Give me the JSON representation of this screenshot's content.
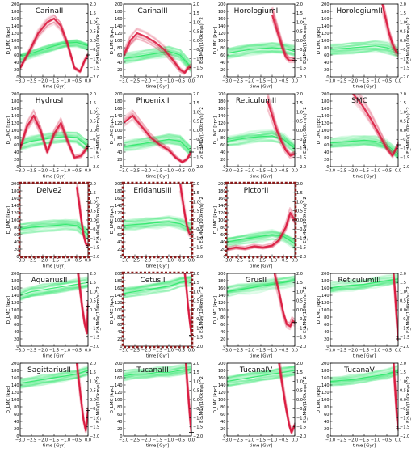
{
  "chart_data": {
    "type": "line",
    "layout": "5x4 grid of small multiples",
    "x_axis": {
      "label": "time [Gyr]",
      "lim": [
        -3.0,
        0.0
      ],
      "ticks": [
        "−3.0",
        "−2.5",
        "−2.0",
        "−1.5",
        "−1.0",
        "−0.5",
        "0.0"
      ]
    },
    "y_axis_left": {
      "label": "D_LMC [kpc]",
      "lim": [
        0,
        200
      ],
      "ticks": [
        "0",
        "20",
        "40",
        "60",
        "80",
        "100",
        "120",
        "140",
        "160",
        "180",
        "200"
      ]
    },
    "y_axis_right": {
      "label": "E_LMC /(100km/s)^2",
      "lim": [
        -2.0,
        2.0
      ],
      "ticks": [
        "−2.0",
        "−1.5",
        "−1.0",
        "−0.5",
        "0.0",
        "0.5",
        "1.0",
        "1.5",
        "2.0"
      ]
    },
    "series_colors": {
      "distance": "#d9143a",
      "energy": "#2ee86a",
      "highlight_border": "#8b1a1a"
    },
    "panels": [
      {
        "name": "CarinaII",
        "row": 0,
        "col": 0,
        "highlight": false,
        "green": [
          -0.9,
          -0.7,
          -0.5,
          -0.3,
          -0.15,
          -0.1,
          -0.3
        ],
        "red": [
          [
            -3.0,
            25
          ],
          [
            -2.6,
            70
          ],
          [
            -2.2,
            120
          ],
          [
            -1.8,
            150
          ],
          [
            -1.5,
            160
          ],
          [
            -1.2,
            140
          ],
          [
            -0.9,
            90
          ],
          [
            -0.6,
            25
          ],
          [
            -0.35,
            15
          ],
          [
            -0.15,
            45
          ],
          [
            0.0,
            60
          ]
        ]
      },
      {
        "name": "CarinaIII",
        "row": 0,
        "col": 1,
        "highlight": false,
        "green": [
          -1.0,
          -0.9,
          -0.8,
          -0.7,
          -0.6,
          -0.8,
          -1.5
        ],
        "red": [
          [
            -3.0,
            60
          ],
          [
            -2.7,
            100
          ],
          [
            -2.4,
            120
          ],
          [
            -2.0,
            110
          ],
          [
            -1.6,
            95
          ],
          [
            -1.2,
            75
          ],
          [
            -0.8,
            45
          ],
          [
            -0.5,
            20
          ],
          [
            -0.3,
            12
          ],
          [
            -0.15,
            25
          ],
          [
            0.0,
            30
          ]
        ]
      },
      {
        "name": "HorologiumI",
        "row": 0,
        "col": 2,
        "highlight": false,
        "green": [
          -0.7,
          -0.6,
          -0.5,
          -0.45,
          -0.4,
          -0.45,
          -0.6
        ],
        "red": [
          [
            -1.0,
            170
          ],
          [
            -0.85,
            140
          ],
          [
            -0.7,
            110
          ],
          [
            -0.55,
            80
          ],
          [
            -0.4,
            55
          ],
          [
            -0.25,
            45
          ],
          [
            0.0,
            45
          ]
        ]
      },
      {
        "name": "HorologiumII",
        "row": 0,
        "col": 3,
        "highlight": false,
        "green": [
          -0.5,
          -0.45,
          -0.4,
          -0.35,
          -0.3,
          -0.4,
          -0.6
        ],
        "red": [
          [
            -0.7,
            200
          ],
          [
            -0.55,
            160
          ],
          [
            -0.4,
            120
          ],
          [
            -0.25,
            90
          ],
          [
            -0.1,
            70
          ],
          [
            0.0,
            65
          ]
        ]
      },
      {
        "name": "HydrusI",
        "row": 1,
        "col": 0,
        "highlight": false,
        "green": [
          -0.8,
          -0.6,
          -0.5,
          -0.4,
          -0.35,
          -0.4,
          -0.9
        ],
        "red": [
          [
            -3.0,
            50
          ],
          [
            -2.7,
            110
          ],
          [
            -2.4,
            140
          ],
          [
            -2.1,
            100
          ],
          [
            -1.8,
            40
          ],
          [
            -1.5,
            90
          ],
          [
            -1.2,
            120
          ],
          [
            -0.9,
            70
          ],
          [
            -0.6,
            25
          ],
          [
            -0.3,
            30
          ],
          [
            0.0,
            55
          ]
        ]
      },
      {
        "name": "PhoenixII",
        "row": 1,
        "col": 1,
        "highlight": false,
        "green": [
          -0.9,
          -0.8,
          -0.7,
          -0.6,
          -0.5,
          -0.6,
          -1.2
        ],
        "red": [
          [
            -3.0,
            120
          ],
          [
            -2.6,
            140
          ],
          [
            -2.2,
            110
          ],
          [
            -1.8,
            80
          ],
          [
            -1.4,
            60
          ],
          [
            -1.0,
            45
          ],
          [
            -0.7,
            25
          ],
          [
            -0.4,
            12
          ],
          [
            -0.2,
            20
          ],
          [
            0.0,
            40
          ]
        ]
      },
      {
        "name": "ReticulumII",
        "row": 1,
        "col": 2,
        "highlight": false,
        "green": [
          -0.6,
          -0.5,
          -0.4,
          -0.35,
          -0.3,
          -0.5,
          -1.0
        ],
        "red": [
          [
            -1.2,
            180
          ],
          [
            -1.0,
            140
          ],
          [
            -0.8,
            100
          ],
          [
            -0.6,
            70
          ],
          [
            -0.4,
            45
          ],
          [
            -0.2,
            30
          ],
          [
            0.0,
            35
          ]
        ]
      },
      {
        "name": "SMC",
        "row": 1,
        "col": 3,
        "highlight": false,
        "green": [
          -0.7,
          -0.65,
          -0.6,
          -0.55,
          -0.6,
          -0.8,
          -1.3
        ],
        "red": [
          [
            -2.0,
            200
          ],
          [
            -1.6,
            170
          ],
          [
            -1.2,
            130
          ],
          [
            -0.8,
            85
          ],
          [
            -0.5,
            50
          ],
          [
            -0.25,
            30
          ],
          [
            0.0,
            60
          ]
        ]
      },
      {
        "name": "Delve2",
        "row": 2,
        "col": 0,
        "highlight": true,
        "green": [
          -0.5,
          -0.4,
          -0.35,
          -0.3,
          -0.25,
          -0.3,
          -0.8
        ],
        "red": [
          [
            -0.5,
            190
          ],
          [
            -0.4,
            150
          ],
          [
            -0.3,
            100
          ],
          [
            -0.2,
            60
          ],
          [
            -0.1,
            35
          ],
          [
            0.0,
            30
          ]
        ]
      },
      {
        "name": "EridanusIII",
        "row": 2,
        "col": 1,
        "highlight": true,
        "green": [
          -0.3,
          -0.25,
          -0.2,
          -0.15,
          -0.1,
          -0.2,
          -0.5
        ],
        "red": [
          [
            -0.5,
            200
          ],
          [
            -0.4,
            160
          ],
          [
            -0.3,
            120
          ],
          [
            -0.2,
            85
          ],
          [
            -0.1,
            65
          ],
          [
            0.0,
            60
          ]
        ]
      },
      {
        "name": "PictorII",
        "row": 2,
        "col": 2,
        "highlight": true,
        "green": [
          -1.2,
          -1.1,
          -1.0,
          -0.9,
          -0.8,
          -0.9,
          -1.3
        ],
        "red": [
          [
            -3.0,
            20
          ],
          [
            -2.6,
            25
          ],
          [
            -2.2,
            22
          ],
          [
            -1.8,
            28
          ],
          [
            -1.4,
            25
          ],
          [
            -1.0,
            30
          ],
          [
            -0.7,
            45
          ],
          [
            -0.4,
            80
          ],
          [
            -0.2,
            120
          ],
          [
            0.0,
            100
          ]
        ]
      },
      {
        "name": "AquariusII",
        "row": 3,
        "col": 0,
        "highlight": false,
        "green": [
          0.8,
          1.0,
          1.1,
          1.2,
          1.3,
          1.4,
          1.5
        ],
        "red": [
          [
            -0.45,
            200
          ],
          [
            -0.35,
            150
          ],
          [
            -0.25,
            100
          ],
          [
            -0.15,
            60
          ],
          [
            -0.05,
            35
          ],
          [
            0.0,
            110
          ]
        ]
      },
      {
        "name": "CetusII",
        "row": 3,
        "col": 1,
        "highlight": true,
        "green": [
          0.9,
          1.0,
          1.1,
          1.2,
          1.3,
          1.5,
          1.6
        ],
        "red": [
          [
            -0.3,
            200
          ],
          [
            -0.22,
            160
          ],
          [
            -0.15,
            110
          ],
          [
            -0.08,
            70
          ],
          [
            0.0,
            30
          ]
        ]
      },
      {
        "name": "GrusII",
        "row": 3,
        "col": 2,
        "highlight": false,
        "green": [
          1.0,
          1.1,
          1.2,
          1.3,
          1.4,
          1.5,
          1.6
        ],
        "red": [
          [
            -0.9,
            200
          ],
          [
            -0.7,
            150
          ],
          [
            -0.5,
            90
          ],
          [
            -0.35,
            60
          ],
          [
            -0.2,
            55
          ],
          [
            -0.1,
            70
          ],
          [
            0.0,
            65
          ]
        ]
      },
      {
        "name": "ReticulumIII",
        "row": 3,
        "col": 3,
        "highlight": false,
        "green": [
          1.2,
          1.3,
          1.35,
          1.4,
          1.5,
          1.6,
          1.7
        ],
        "red": [
          [
            -0.2,
            200
          ],
          [
            -0.15,
            160
          ],
          [
            -0.1,
            110
          ],
          [
            -0.05,
            60
          ],
          [
            0.0,
            20
          ]
        ]
      },
      {
        "name": "SagittariusII",
        "row": 4,
        "col": 0,
        "highlight": false,
        "green": [
          0.9,
          1.0,
          1.1,
          1.2,
          1.3,
          1.4,
          1.6
        ],
        "red": [
          [
            -0.5,
            200
          ],
          [
            -0.4,
            150
          ],
          [
            -0.3,
            95
          ],
          [
            -0.2,
            45
          ],
          [
            -0.1,
            15
          ],
          [
            0.0,
            70
          ]
        ]
      },
      {
        "name": "TucanaIII",
        "row": 4,
        "col": 1,
        "highlight": false,
        "green": [
          1.3,
          1.4,
          1.4,
          1.5,
          1.5,
          1.6,
          1.7
        ],
        "red": [
          [
            -0.25,
            200
          ],
          [
            -0.18,
            140
          ],
          [
            -0.1,
            80
          ],
          [
            -0.05,
            40
          ],
          [
            0.0,
            10
          ]
        ]
      },
      {
        "name": "TucanaIV",
        "row": 4,
        "col": 2,
        "highlight": false,
        "green": [
          1.0,
          1.1,
          1.2,
          1.3,
          1.4,
          1.5,
          1.6
        ],
        "red": [
          [
            -0.7,
            200
          ],
          [
            -0.55,
            140
          ],
          [
            -0.4,
            80
          ],
          [
            -0.25,
            30
          ],
          [
            -0.15,
            10
          ],
          [
            0.0,
            30
          ]
        ]
      },
      {
        "name": "TucanaV",
        "row": 4,
        "col": 3,
        "highlight": false,
        "green": [
          1.0,
          1.05,
          1.1,
          1.2,
          1.3,
          1.4,
          1.6
        ],
        "red": [
          [
            -0.2,
            200
          ],
          [
            -0.15,
            150
          ],
          [
            -0.1,
            100
          ],
          [
            -0.05,
            50
          ],
          [
            0.0,
            20
          ]
        ]
      }
    ]
  }
}
